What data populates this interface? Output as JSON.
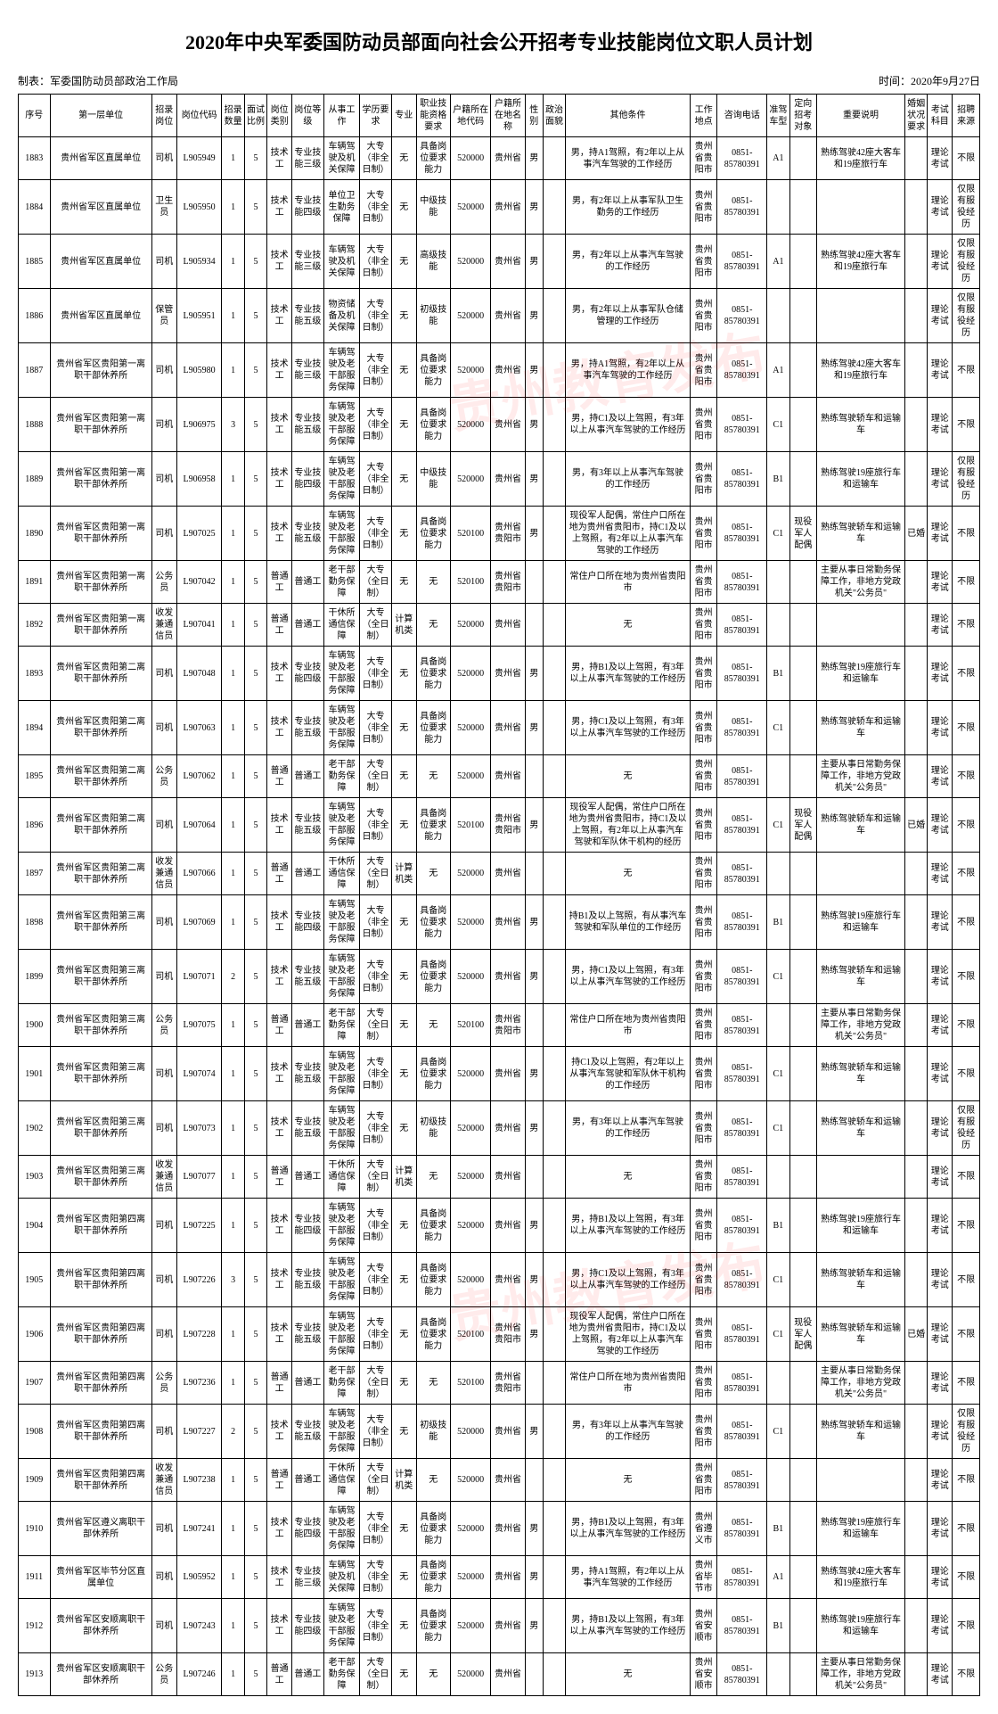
{
  "title": "2020年中央军委国防动员部面向社会公开招考专业技能岗位文职人员计划",
  "meta_left": "制表：军委国防动员部政治工作局",
  "meta_right": "时间：2020年9月27日",
  "watermark": "贵州教育发布",
  "columns": [
    "序号",
    "第一层单位",
    "招录岗位",
    "岗位代码",
    "招录数量",
    "面试比例",
    "岗位类别",
    "岗位等级",
    "从事工作",
    "学历要求",
    "专业",
    "职业技能资格要求",
    "户籍所在地代码",
    "户籍所在地名称",
    "性别",
    "政治面貌",
    "其他条件",
    "工作地点",
    "咨询电话",
    "准驾车型",
    "定向招考对象",
    "重要说明",
    "婚姻状况要求",
    "考试科目",
    "招聘来源"
  ],
  "rows": [
    {
      "seq": "1883",
      "unit": "贵州省军区直属单位",
      "pos": "司机",
      "code": "L905949",
      "num": "1",
      "ratio": "5",
      "ptype": "技术工",
      "plevel": "专业技能三级",
      "work": "车辆驾驶及机关保障",
      "edu": "大专（非全日制）",
      "major": "无",
      "qual": "具备岗位要求能力",
      "hcode": "520000",
      "hname": "贵州省",
      "sex": "男",
      "pol": "",
      "other": "男，持A1驾照，有2年以上从事汽车驾驶的工作经历",
      "loc": "贵州省贵阳市",
      "tel": "0851-85780391",
      "lic": "A1",
      "target": "",
      "note": "熟练驾驶42座大客车和19座旅行车",
      "marry": "",
      "exam": "理论考试",
      "src": "不限"
    },
    {
      "seq": "1884",
      "unit": "贵州省军区直属单位",
      "pos": "卫生员",
      "code": "L905950",
      "num": "1",
      "ratio": "5",
      "ptype": "技术工",
      "plevel": "专业技能四级",
      "work": "单位卫生勤务保障",
      "edu": "大专（非全日制）",
      "major": "无",
      "qual": "中级技能",
      "hcode": "520000",
      "hname": "贵州省",
      "sex": "男",
      "pol": "",
      "other": "男，有2年以上从事军队卫生勤务的工作经历",
      "loc": "贵州省贵阳市",
      "tel": "0851-85780391",
      "lic": "",
      "target": "",
      "note": "",
      "marry": "",
      "exam": "理论考试",
      "src": "仅限有服役经历"
    },
    {
      "seq": "1885",
      "unit": "贵州省军区直属单位",
      "pos": "司机",
      "code": "L905934",
      "num": "1",
      "ratio": "5",
      "ptype": "技术工",
      "plevel": "专业技能三级",
      "work": "车辆驾驶及机关保障",
      "edu": "大专（非全日制）",
      "major": "无",
      "qual": "高级技能",
      "hcode": "520000",
      "hname": "贵州省",
      "sex": "男",
      "pol": "",
      "other": "男，有2年以上从事汽车驾驶的工作经历",
      "loc": "贵州省贵阳市",
      "tel": "0851-85780391",
      "lic": "A1",
      "target": "",
      "note": "熟练驾驶42座大客车和19座旅行车",
      "marry": "",
      "exam": "理论考试",
      "src": "仅限有服役经历"
    },
    {
      "seq": "1886",
      "unit": "贵州省军区直属单位",
      "pos": "保管员",
      "code": "L905951",
      "num": "1",
      "ratio": "5",
      "ptype": "技术工",
      "plevel": "专业技能五级",
      "work": "物资储备及机关保障",
      "edu": "大专（非全日制）",
      "major": "无",
      "qual": "初级技能",
      "hcode": "520000",
      "hname": "贵州省",
      "sex": "男",
      "pol": "",
      "other": "男，有2年以上从事军队仓储管理的工作经历",
      "loc": "贵州省贵阳市",
      "tel": "0851-85780391",
      "lic": "",
      "target": "",
      "note": "",
      "marry": "",
      "exam": "理论考试",
      "src": "仅限有服役经历"
    },
    {
      "seq": "1887",
      "unit": "贵州省军区贵阳第一离职干部休养所",
      "pos": "司机",
      "code": "L905980",
      "num": "1",
      "ratio": "5",
      "ptype": "技术工",
      "plevel": "专业技能三级",
      "work": "车辆驾驶及老干部服务保障",
      "edu": "大专（非全日制）",
      "major": "无",
      "qual": "具备岗位要求能力",
      "hcode": "520000",
      "hname": "贵州省",
      "sex": "男",
      "pol": "",
      "other": "男，持A1驾照，有2年以上从事汽车驾驶的工作经历",
      "loc": "贵州省贵阳市",
      "tel": "0851-85780391",
      "lic": "A1",
      "target": "",
      "note": "熟练驾驶42座大客车和19座旅行车",
      "marry": "",
      "exam": "理论考试",
      "src": "不限"
    },
    {
      "seq": "1888",
      "unit": "贵州省军区贵阳第一离职干部休养所",
      "pos": "司机",
      "code": "L906975",
      "num": "3",
      "ratio": "5",
      "ptype": "技术工",
      "plevel": "专业技能五级",
      "work": "车辆驾驶及老干部服务保障",
      "edu": "大专（非全日制）",
      "major": "无",
      "qual": "具备岗位要求能力",
      "hcode": "520000",
      "hname": "贵州省",
      "sex": "男",
      "pol": "",
      "other": "男，持C1及以上驾照，有3年以上从事汽车驾驶的工作经历",
      "loc": "贵州省贵阳市",
      "tel": "0851-85780391",
      "lic": "C1",
      "target": "",
      "note": "熟练驾驶轿车和运输车",
      "marry": "",
      "exam": "理论考试",
      "src": "不限"
    },
    {
      "seq": "1889",
      "unit": "贵州省军区贵阳第一离职干部休养所",
      "pos": "司机",
      "code": "L906958",
      "num": "1",
      "ratio": "5",
      "ptype": "技术工",
      "plevel": "专业技能四级",
      "work": "车辆驾驶及老干部服务保障",
      "edu": "大专（非全日制）",
      "major": "无",
      "qual": "中级技能",
      "hcode": "520000",
      "hname": "贵州省",
      "sex": "男",
      "pol": "",
      "other": "男，有3年以上从事汽车驾驶的工作经历",
      "loc": "贵州省贵阳市",
      "tel": "0851-85780391",
      "lic": "B1",
      "target": "",
      "note": "熟练驾驶19座旅行车和运输车",
      "marry": "",
      "exam": "理论考试",
      "src": "仅限有服役经历"
    },
    {
      "seq": "1890",
      "unit": "贵州省军区贵阳第一离职干部休养所",
      "pos": "司机",
      "code": "L907025",
      "num": "1",
      "ratio": "5",
      "ptype": "技术工",
      "plevel": "专业技能五级",
      "work": "车辆驾驶及老干部服务保障",
      "edu": "大专（非全日制）",
      "major": "无",
      "qual": "具备岗位要求能力",
      "hcode": "520100",
      "hname": "贵州省贵阳市",
      "sex": "男",
      "pol": "",
      "other": "现役军人配偶，常住户口所在地为贵州省贵阳市，持C1及以上驾照，有2年以上从事汽车驾驶的工作经历",
      "loc": "贵州省贵阳市",
      "tel": "0851-85780391",
      "lic": "C1",
      "target": "现役军人配偶",
      "note": "熟练驾驶轿车和运输车",
      "marry": "已婚",
      "exam": "理论考试",
      "src": "不限"
    },
    {
      "seq": "1891",
      "unit": "贵州省军区贵阳第一离职干部休养所",
      "pos": "公务员",
      "code": "L907042",
      "num": "1",
      "ratio": "5",
      "ptype": "普通工",
      "plevel": "普通工",
      "work": "老干部勤务保障",
      "edu": "大专（全日制）",
      "major": "无",
      "qual": "无",
      "hcode": "520100",
      "hname": "贵州省贵阳市",
      "sex": "",
      "pol": "",
      "other": "常住户口所在地为贵州省贵阳市",
      "loc": "贵州省贵阳市",
      "tel": "0851-85780391",
      "lic": "",
      "target": "",
      "note": "主要从事日常勤务保障工作，非地方党政机关\"公务员\"",
      "marry": "",
      "exam": "理论考试",
      "src": "不限"
    },
    {
      "seq": "1892",
      "unit": "贵州省军区贵阳第一离职干部休养所",
      "pos": "收发兼通信员",
      "code": "L907041",
      "num": "1",
      "ratio": "5",
      "ptype": "普通工",
      "plevel": "普通工",
      "work": "干休所通信保障",
      "edu": "大专（全日制）",
      "major": "计算机类",
      "qual": "无",
      "hcode": "520000",
      "hname": "贵州省",
      "sex": "",
      "pol": "",
      "other": "无",
      "loc": "贵州省贵阳市",
      "tel": "0851-85780391",
      "lic": "",
      "target": "",
      "note": "",
      "marry": "",
      "exam": "理论考试",
      "src": "不限"
    },
    {
      "seq": "1893",
      "unit": "贵州省军区贵阳第二离职干部休养所",
      "pos": "司机",
      "code": "L907048",
      "num": "1",
      "ratio": "5",
      "ptype": "技术工",
      "plevel": "专业技能四级",
      "work": "车辆驾驶及老干部服务保障",
      "edu": "大专（非全日制）",
      "major": "无",
      "qual": "具备岗位要求能力",
      "hcode": "520000",
      "hname": "贵州省",
      "sex": "男",
      "pol": "",
      "other": "男，持B1及以上驾照，有3年以上从事汽车驾驶的工作经历",
      "loc": "贵州省贵阳市",
      "tel": "0851-85780391",
      "lic": "B1",
      "target": "",
      "note": "熟练驾驶19座旅行车和运输车",
      "marry": "",
      "exam": "理论考试",
      "src": "不限"
    },
    {
      "seq": "1894",
      "unit": "贵州省军区贵阳第二离职干部休养所",
      "pos": "司机",
      "code": "L907063",
      "num": "1",
      "ratio": "5",
      "ptype": "技术工",
      "plevel": "专业技能五级",
      "work": "车辆驾驶及老干部服务保障",
      "edu": "大专（非全日制）",
      "major": "无",
      "qual": "具备岗位要求能力",
      "hcode": "520000",
      "hname": "贵州省",
      "sex": "男",
      "pol": "",
      "other": "男，持C1及以上驾照，有3年以上从事汽车驾驶的工作经历",
      "loc": "贵州省贵阳市",
      "tel": "0851-85780391",
      "lic": "C1",
      "target": "",
      "note": "熟练驾驶轿车和运输车",
      "marry": "",
      "exam": "理论考试",
      "src": "不限"
    },
    {
      "seq": "1895",
      "unit": "贵州省军区贵阳第二离职干部休养所",
      "pos": "公务员",
      "code": "L907062",
      "num": "1",
      "ratio": "5",
      "ptype": "普通工",
      "plevel": "普通工",
      "work": "老干部勤务保障",
      "edu": "大专（全日制）",
      "major": "无",
      "qual": "无",
      "hcode": "520000",
      "hname": "贵州省",
      "sex": "",
      "pol": "",
      "other": "无",
      "loc": "贵州省贵阳市",
      "tel": "0851-85780391",
      "lic": "",
      "target": "",
      "note": "主要从事日常勤务保障工作，非地方党政机关\"公务员\"",
      "marry": "",
      "exam": "理论考试",
      "src": "不限"
    },
    {
      "seq": "1896",
      "unit": "贵州省军区贵阳第二离职干部休养所",
      "pos": "司机",
      "code": "L907064",
      "num": "1",
      "ratio": "5",
      "ptype": "技术工",
      "plevel": "专业技能五级",
      "work": "车辆驾驶及老干部服务保障",
      "edu": "大专（非全日制）",
      "major": "无",
      "qual": "具备岗位要求能力",
      "hcode": "520100",
      "hname": "贵州省贵阳市",
      "sex": "男",
      "pol": "",
      "other": "现役军人配偶，常住户口所在地为贵州省贵阳市，持C1及以上驾照，有2年以上从事汽车驾驶和军队休干机构的经历",
      "loc": "贵州省贵阳市",
      "tel": "0851-85780391",
      "lic": "C1",
      "target": "现役军人配偶",
      "note": "熟练驾驶轿车和运输车",
      "marry": "已婚",
      "exam": "理论考试",
      "src": "不限"
    },
    {
      "seq": "1897",
      "unit": "贵州省军区贵阳第二离职干部休养所",
      "pos": "收发兼通信员",
      "code": "L907066",
      "num": "1",
      "ratio": "5",
      "ptype": "普通工",
      "plevel": "普通工",
      "work": "干休所通信保障",
      "edu": "大专（全日制）",
      "major": "计算机类",
      "qual": "无",
      "hcode": "520000",
      "hname": "贵州省",
      "sex": "",
      "pol": "",
      "other": "无",
      "loc": "贵州省贵阳市",
      "tel": "0851-85780391",
      "lic": "",
      "target": "",
      "note": "",
      "marry": "",
      "exam": "理论考试",
      "src": "不限"
    },
    {
      "seq": "1898",
      "unit": "贵州省军区贵阳第三离职干部休养所",
      "pos": "司机",
      "code": "L907069",
      "num": "1",
      "ratio": "5",
      "ptype": "技术工",
      "plevel": "专业技能四级",
      "work": "车辆驾驶及老干部服务保障",
      "edu": "大专（非全日制）",
      "major": "无",
      "qual": "具备岗位要求能力",
      "hcode": "520000",
      "hname": "贵州省",
      "sex": "男",
      "pol": "",
      "other": "持B1及以上驾照，有从事汽车驾驶和军队单位的工作经历",
      "loc": "贵州省贵阳市",
      "tel": "0851-85780391",
      "lic": "B1",
      "target": "",
      "note": "熟练驾驶19座旅行车和运输车",
      "marry": "",
      "exam": "理论考试",
      "src": "不限"
    },
    {
      "seq": "1899",
      "unit": "贵州省军区贵阳第三离职干部休养所",
      "pos": "司机",
      "code": "L907071",
      "num": "2",
      "ratio": "5",
      "ptype": "技术工",
      "plevel": "专业技能五级",
      "work": "车辆驾驶及老干部服务保障",
      "edu": "大专（非全日制）",
      "major": "无",
      "qual": "具备岗位要求能力",
      "hcode": "520000",
      "hname": "贵州省",
      "sex": "男",
      "pol": "",
      "other": "男，持C1及以上驾照，有3年以上从事汽车驾驶的工作经历",
      "loc": "贵州省贵阳市",
      "tel": "0851-85780391",
      "lic": "C1",
      "target": "",
      "note": "熟练驾驶轿车和运输车",
      "marry": "",
      "exam": "理论考试",
      "src": "不限"
    },
    {
      "seq": "1900",
      "unit": "贵州省军区贵阳第三离职干部休养所",
      "pos": "公务员",
      "code": "L907075",
      "num": "1",
      "ratio": "5",
      "ptype": "普通工",
      "plevel": "普通工",
      "work": "老干部勤务保障",
      "edu": "大专（全日制）",
      "major": "无",
      "qual": "无",
      "hcode": "520100",
      "hname": "贵州省贵阳市",
      "sex": "",
      "pol": "",
      "other": "常住户口所在地为贵州省贵阳市",
      "loc": "贵州省贵阳市",
      "tel": "0851-85780391",
      "lic": "",
      "target": "",
      "note": "主要从事日常勤务保障工作，非地方党政机关\"公务员\"",
      "marry": "",
      "exam": "理论考试",
      "src": "不限"
    },
    {
      "seq": "1901",
      "unit": "贵州省军区贵阳第三离职干部休养所",
      "pos": "司机",
      "code": "L907074",
      "num": "1",
      "ratio": "5",
      "ptype": "技术工",
      "plevel": "专业技能五级",
      "work": "车辆驾驶及老干部服务保障",
      "edu": "大专（非全日制）",
      "major": "无",
      "qual": "具备岗位要求能力",
      "hcode": "520000",
      "hname": "贵州省",
      "sex": "男",
      "pol": "",
      "other": "持C1及以上驾照，有2年以上从事汽车驾驶和军队休干机构的工作经历",
      "loc": "贵州省贵阳市",
      "tel": "0851-85780391",
      "lic": "C1",
      "target": "",
      "note": "熟练驾驶轿车和运输车",
      "marry": "",
      "exam": "理论考试",
      "src": "不限"
    },
    {
      "seq": "1902",
      "unit": "贵州省军区贵阳第三离职干部休养所",
      "pos": "司机",
      "code": "L907073",
      "num": "1",
      "ratio": "5",
      "ptype": "技术工",
      "plevel": "专业技能五级",
      "work": "车辆驾驶及老干部服务保障",
      "edu": "大专（非全日制）",
      "major": "无",
      "qual": "初级技能",
      "hcode": "520000",
      "hname": "贵州省",
      "sex": "男",
      "pol": "",
      "other": "男，有3年以上从事汽车驾驶的工作经历",
      "loc": "贵州省贵阳市",
      "tel": "0851-85780391",
      "lic": "C1",
      "target": "",
      "note": "熟练驾驶轿车和运输车",
      "marry": "",
      "exam": "理论考试",
      "src": "仅限有服役经历"
    },
    {
      "seq": "1903",
      "unit": "贵州省军区贵阳第三离职干部休养所",
      "pos": "收发兼通信员",
      "code": "L907077",
      "num": "1",
      "ratio": "5",
      "ptype": "普通工",
      "plevel": "普通工",
      "work": "干休所通信保障",
      "edu": "大专（全日制）",
      "major": "计算机类",
      "qual": "无",
      "hcode": "520000",
      "hname": "贵州省",
      "sex": "",
      "pol": "",
      "other": "无",
      "loc": "贵州省贵阳市",
      "tel": "0851-85780391",
      "lic": "",
      "target": "",
      "note": "",
      "marry": "",
      "exam": "理论考试",
      "src": "不限"
    },
    {
      "seq": "1904",
      "unit": "贵州省军区贵阳第四离职干部休养所",
      "pos": "司机",
      "code": "L907225",
      "num": "1",
      "ratio": "5",
      "ptype": "技术工",
      "plevel": "专业技能四级",
      "work": "车辆驾驶及老干部服务保障",
      "edu": "大专（非全日制）",
      "major": "无",
      "qual": "具备岗位要求能力",
      "hcode": "520000",
      "hname": "贵州省",
      "sex": "男",
      "pol": "",
      "other": "男，持B1及以上驾照，有3年以上从事汽车驾驶的工作经历",
      "loc": "贵州省贵阳市",
      "tel": "0851-85780391",
      "lic": "B1",
      "target": "",
      "note": "熟练驾驶19座旅行车和运输车",
      "marry": "",
      "exam": "理论考试",
      "src": "不限"
    },
    {
      "seq": "1905",
      "unit": "贵州省军区贵阳第四离职干部休养所",
      "pos": "司机",
      "code": "L907226",
      "num": "3",
      "ratio": "5",
      "ptype": "技术工",
      "plevel": "专业技能五级",
      "work": "车辆驾驶及老干部服务保障",
      "edu": "大专（非全日制）",
      "major": "无",
      "qual": "具备岗位要求能力",
      "hcode": "520000",
      "hname": "贵州省",
      "sex": "男",
      "pol": "",
      "other": "男，持C1及以上驾照，有3年以上从事汽车驾驶的工作经历",
      "loc": "贵州省贵阳市",
      "tel": "0851-85780391",
      "lic": "C1",
      "target": "",
      "note": "熟练驾驶轿车和运输车",
      "marry": "",
      "exam": "理论考试",
      "src": "不限"
    },
    {
      "seq": "1906",
      "unit": "贵州省军区贵阳第四离职干部休养所",
      "pos": "司机",
      "code": "L907228",
      "num": "1",
      "ratio": "5",
      "ptype": "技术工",
      "plevel": "专业技能五级",
      "work": "车辆驾驶及老干部服务保障",
      "edu": "大专（非全日制）",
      "major": "无",
      "qual": "具备岗位要求能力",
      "hcode": "520100",
      "hname": "贵州省贵阳市",
      "sex": "男",
      "pol": "",
      "other": "现役军人配偶，常住户口所在地为贵州省贵阳市，持C1及以上驾照，有2年以上从事汽车驾驶的工作经历",
      "loc": "贵州省贵阳市",
      "tel": "0851-85780391",
      "lic": "C1",
      "target": "现役军人配偶",
      "note": "熟练驾驶轿车和运输车",
      "marry": "已婚",
      "exam": "理论考试",
      "src": "不限"
    },
    {
      "seq": "1907",
      "unit": "贵州省军区贵阳第四离职干部休养所",
      "pos": "公务员",
      "code": "L907236",
      "num": "1",
      "ratio": "5",
      "ptype": "普通工",
      "plevel": "普通工",
      "work": "老干部勤务保障",
      "edu": "大专（全日制）",
      "major": "无",
      "qual": "无",
      "hcode": "520100",
      "hname": "贵州省贵阳市",
      "sex": "",
      "pol": "",
      "other": "常住户口所在地为贵州省贵阳市",
      "loc": "贵州省贵阳市",
      "tel": "0851-85780391",
      "lic": "",
      "target": "",
      "note": "主要从事日常勤务保障工作，非地方党政机关\"公务员\"",
      "marry": "",
      "exam": "理论考试",
      "src": "不限"
    },
    {
      "seq": "1908",
      "unit": "贵州省军区贵阳第四离职干部休养所",
      "pos": "司机",
      "code": "L907227",
      "num": "2",
      "ratio": "5",
      "ptype": "技术工",
      "plevel": "专业技能五级",
      "work": "车辆驾驶及老干部服务保障",
      "edu": "大专（非全日制）",
      "major": "无",
      "qual": "初级技能",
      "hcode": "520000",
      "hname": "贵州省",
      "sex": "男",
      "pol": "",
      "other": "男，有3年以上从事汽车驾驶的工作经历",
      "loc": "贵州省贵阳市",
      "tel": "0851-85780391",
      "lic": "C1",
      "target": "",
      "note": "熟练驾驶轿车和运输车",
      "marry": "",
      "exam": "理论考试",
      "src": "仅限有服役经历"
    },
    {
      "seq": "1909",
      "unit": "贵州省军区贵阳第四离职干部休养所",
      "pos": "收发兼通信员",
      "code": "L907238",
      "num": "1",
      "ratio": "5",
      "ptype": "普通工",
      "plevel": "普通工",
      "work": "干休所通信保障",
      "edu": "大专（全日制）",
      "major": "计算机类",
      "qual": "无",
      "hcode": "520000",
      "hname": "贵州省",
      "sex": "",
      "pol": "",
      "other": "无",
      "loc": "贵州省贵阳市",
      "tel": "0851-85780391",
      "lic": "",
      "target": "",
      "note": "",
      "marry": "",
      "exam": "理论考试",
      "src": "不限"
    },
    {
      "seq": "1910",
      "unit": "贵州省军区遵义离职干部休养所",
      "pos": "司机",
      "code": "L907241",
      "num": "1",
      "ratio": "5",
      "ptype": "技术工",
      "plevel": "专业技能四级",
      "work": "车辆驾驶及老干部服务保障",
      "edu": "大专（非全日制）",
      "major": "无",
      "qual": "具备岗位要求能力",
      "hcode": "520000",
      "hname": "贵州省",
      "sex": "男",
      "pol": "",
      "other": "男，持B1及以上驾照，有3年以上从事汽车驾驶的工作经历",
      "loc": "贵州省遵义市",
      "tel": "0851-85780391",
      "lic": "B1",
      "target": "",
      "note": "熟练驾驶19座旅行车和运输车",
      "marry": "",
      "exam": "理论考试",
      "src": "不限"
    },
    {
      "seq": "1911",
      "unit": "贵州省军区毕节分区直属单位",
      "pos": "司机",
      "code": "L905952",
      "num": "1",
      "ratio": "5",
      "ptype": "技术工",
      "plevel": "专业技能三级",
      "work": "车辆驾驶及机关保障",
      "edu": "大专（非全日制）",
      "major": "无",
      "qual": "具备岗位要求能力",
      "hcode": "520000",
      "hname": "贵州省",
      "sex": "男",
      "pol": "",
      "other": "男，持A1驾照，有2年以上从事汽车驾驶的工作经历",
      "loc": "贵州省毕节市",
      "tel": "0851-85780391",
      "lic": "A1",
      "target": "",
      "note": "熟练驾驶42座大客车和19座旅行车",
      "marry": "",
      "exam": "理论考试",
      "src": "不限"
    },
    {
      "seq": "1912",
      "unit": "贵州省军区安顺离职干部休养所",
      "pos": "司机",
      "code": "L907243",
      "num": "1",
      "ratio": "5",
      "ptype": "技术工",
      "plevel": "专业技能四级",
      "work": "车辆驾驶及老干部服务保障",
      "edu": "大专（非全日制）",
      "major": "无",
      "qual": "具备岗位要求能力",
      "hcode": "520000",
      "hname": "贵州省",
      "sex": "男",
      "pol": "",
      "other": "男，持B1及以上驾照，有3年以上从事汽车驾驶的工作经历",
      "loc": "贵州省安顺市",
      "tel": "0851-85780391",
      "lic": "B1",
      "target": "",
      "note": "熟练驾驶19座旅行车和运输车",
      "marry": "",
      "exam": "理论考试",
      "src": "不限"
    },
    {
      "seq": "1913",
      "unit": "贵州省军区安顺离职干部休养所",
      "pos": "公务员",
      "code": "L907246",
      "num": "1",
      "ratio": "5",
      "ptype": "普通工",
      "plevel": "普通工",
      "work": "老干部勤务保障",
      "edu": "大专（全日制）",
      "major": "无",
      "qual": "无",
      "hcode": "520000",
      "hname": "贵州省",
      "sex": "",
      "pol": "",
      "other": "无",
      "loc": "贵州省安顺市",
      "tel": "0851-85780391",
      "lic": "",
      "target": "",
      "note": "主要从事日常勤务保障工作，非地方党政机关\"公务员\"",
      "marry": "",
      "exam": "理论考试",
      "src": "不限"
    }
  ]
}
